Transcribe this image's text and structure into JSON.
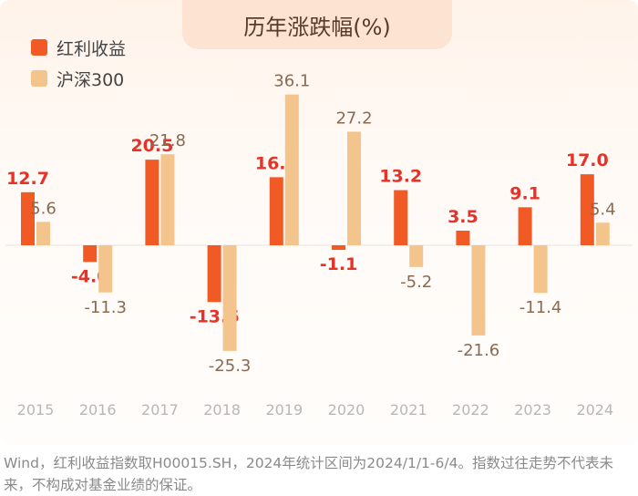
{
  "title": "历年涨跌幅(%)",
  "colors": {
    "series1": "#f15a24",
    "series2": "#f3c58c",
    "series1_label": "#e83228",
    "series2_label": "#8a6a50"
  },
  "chart_data": {
    "type": "bar",
    "title": "历年涨跌幅(%)",
    "categories": [
      "2015",
      "2016",
      "2017",
      "2018",
      "2019",
      "2020",
      "2021",
      "2022",
      "2023",
      "2024"
    ],
    "series": [
      {
        "name": "红利收益",
        "values": [
          12.7,
          -4.0,
          20.5,
          -13.6,
          16.3,
          -1.1,
          13.2,
          3.5,
          9.1,
          17.0
        ],
        "labels": [
          "12.7",
          "-4.0",
          "20.5",
          "-13.6",
          "16.3",
          "-1.1",
          "13.2",
          "3.5",
          "9.1",
          "17.0"
        ]
      },
      {
        "name": "沪深300",
        "values": [
          5.6,
          -11.3,
          21.8,
          -25.3,
          36.1,
          27.2,
          -5.2,
          -21.6,
          -11.4,
          5.4
        ],
        "labels": [
          "5.6",
          "-11.3",
          "21.8",
          "-25.3",
          "36.1",
          "27.2",
          "-5.2",
          "-21.6",
          "-11.4",
          "5.4"
        ]
      }
    ],
    "ylim": [
      -30,
      40
    ],
    "grid": false,
    "legend_position": "top-left"
  },
  "footnote": "Wind，红利收益指数取H00015.SH，2024年统计区间为2024/1/1-6/4。指数过往走势不代表未来，不构成对基金业绩的保证。"
}
